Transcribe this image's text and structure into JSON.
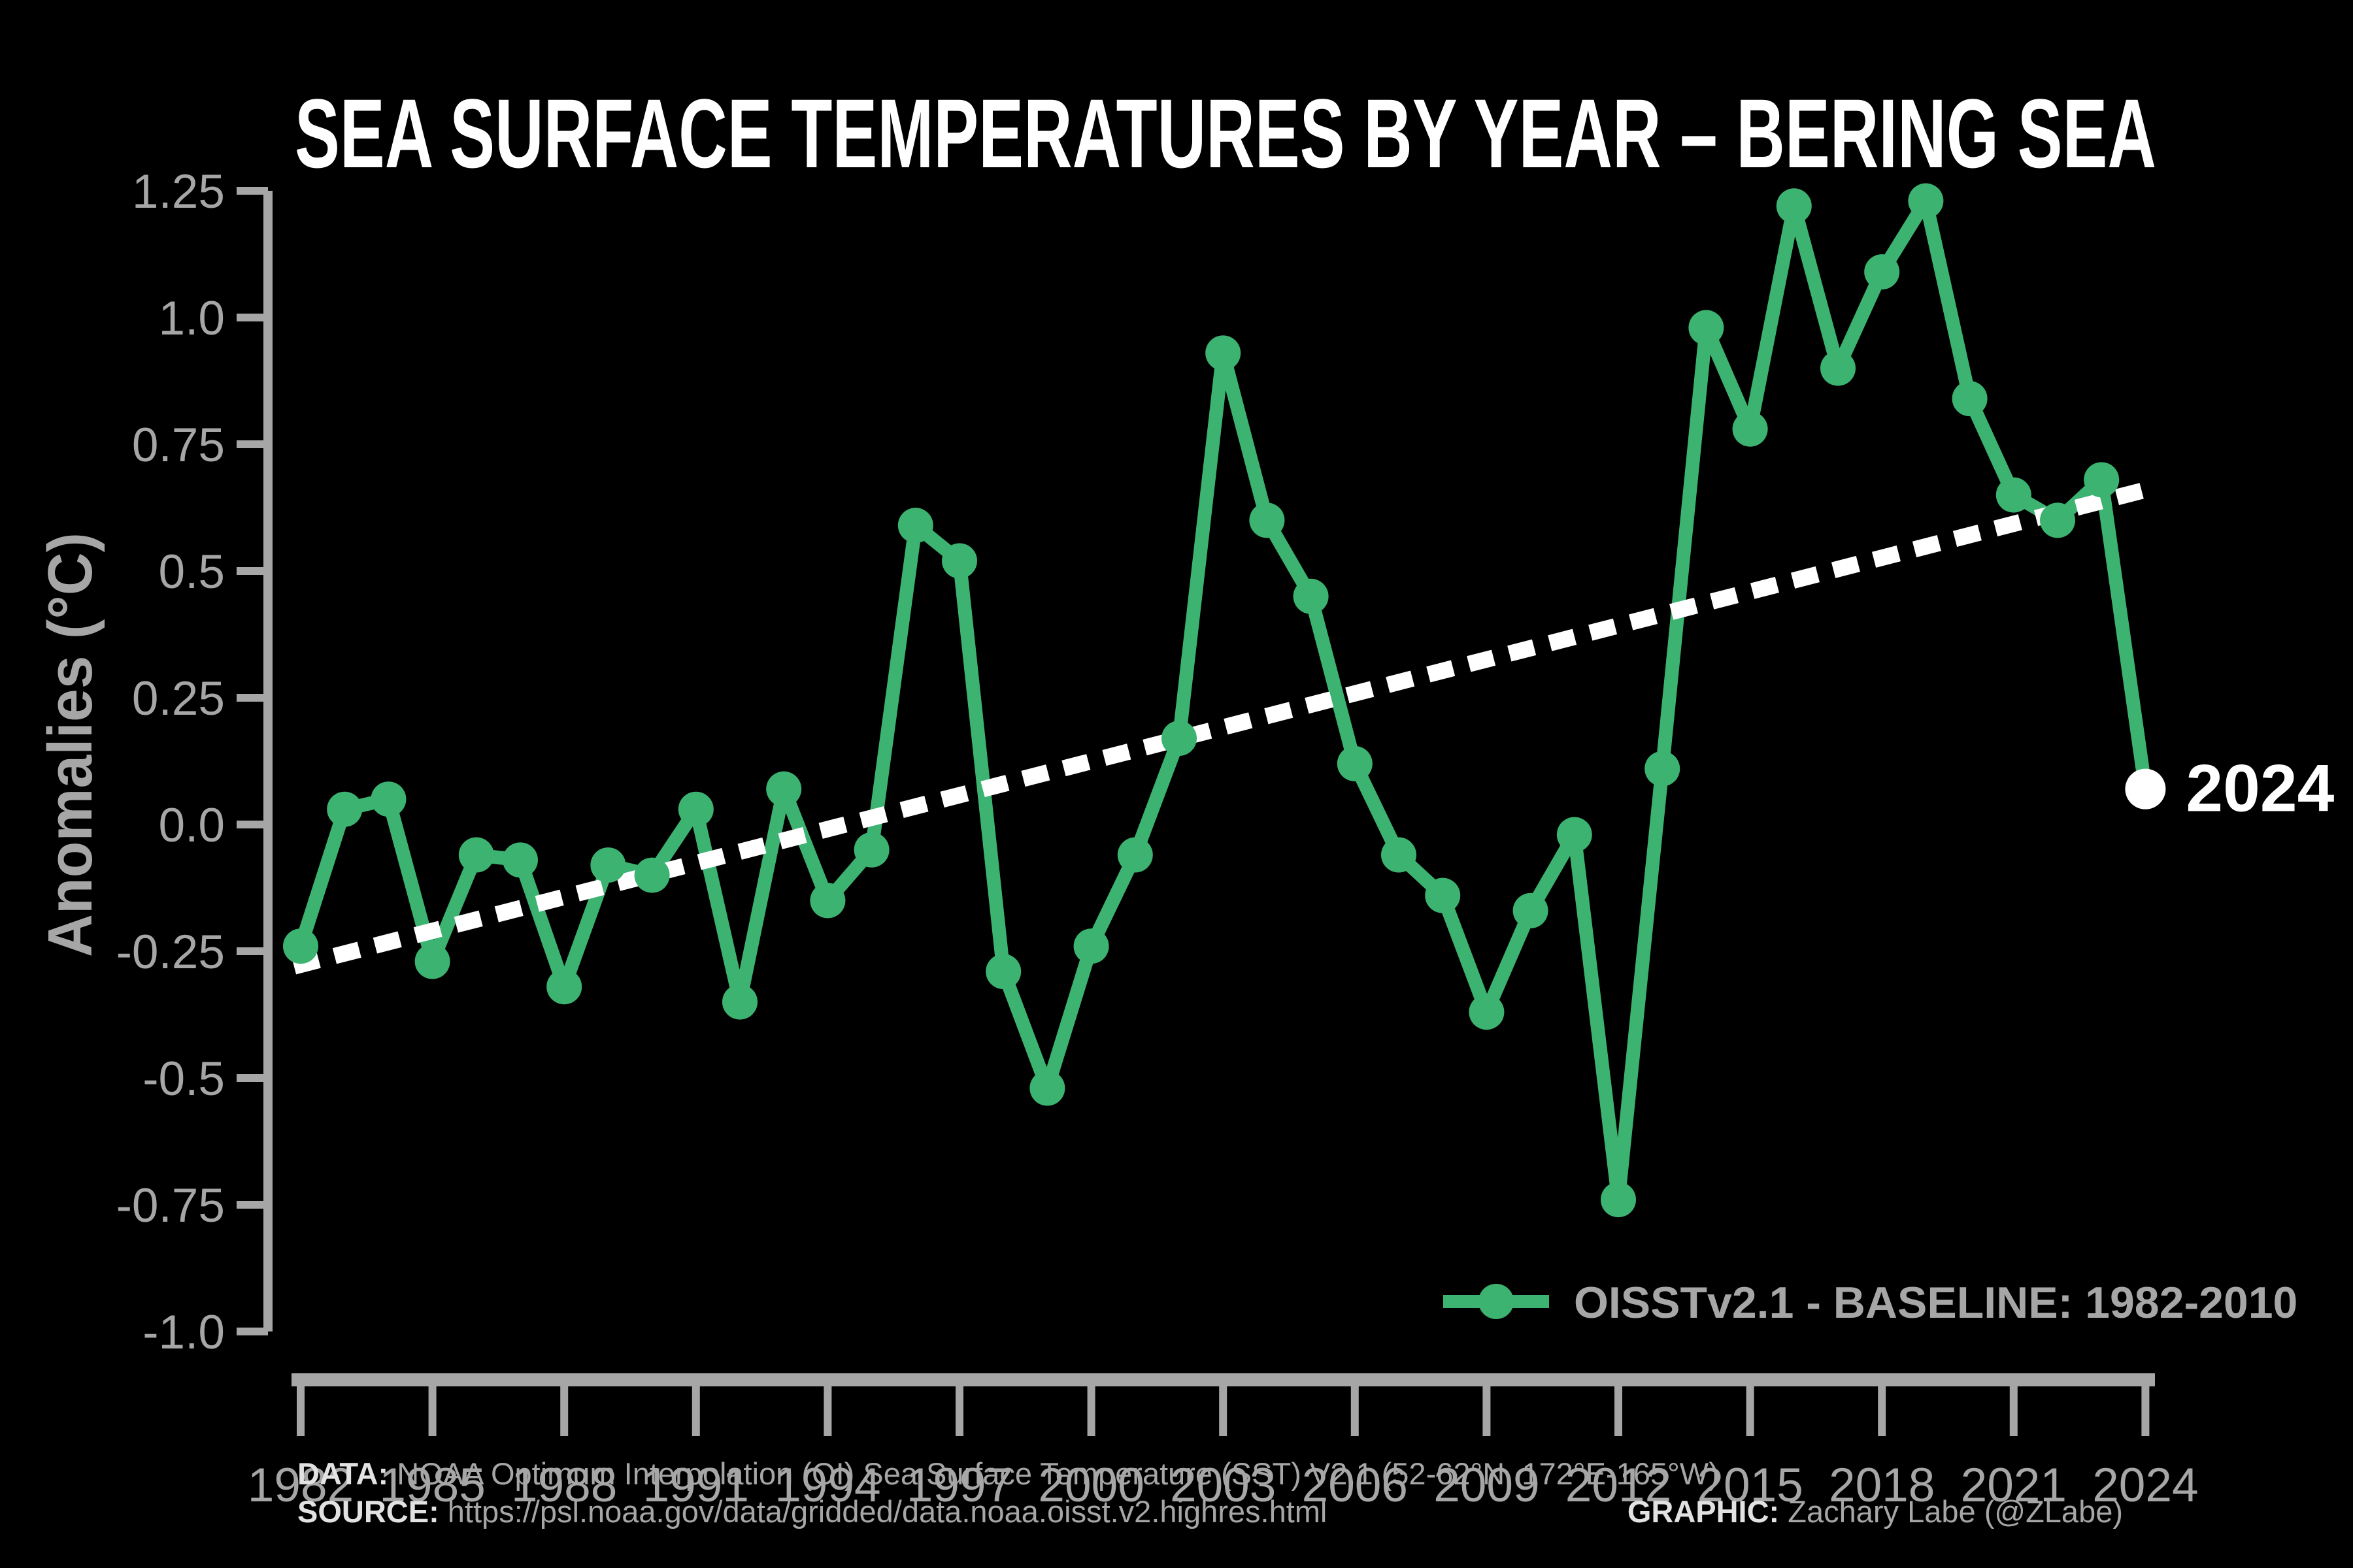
{
  "title": "SEA SURFACE TEMPERATURES BY YEAR – BERING SEA",
  "y_axis": {
    "label": "Anomalies (°C)",
    "ticks": [
      "1.25",
      "1.0",
      "0.75",
      "0.5",
      "0.25",
      "0.0",
      "-0.25",
      "-0.5",
      "-0.75",
      "-1.0"
    ],
    "tick_values": [
      1.25,
      1.0,
      0.75,
      0.5,
      0.25,
      0.0,
      -0.25,
      -0.5,
      -0.75,
      -1.0
    ]
  },
  "x_axis": {
    "ticks": [
      "1982",
      "1985",
      "1988",
      "1991",
      "1994",
      "1997",
      "2000",
      "2003",
      "2006",
      "2009",
      "2012",
      "2015",
      "2018",
      "2021",
      "2024"
    ],
    "tick_values": [
      1982,
      1985,
      1988,
      1991,
      1994,
      1997,
      2000,
      2003,
      2006,
      2009,
      2012,
      2015,
      2018,
      2021,
      2024
    ]
  },
  "legend": {
    "label": "OISSTv2.1 - BASELINE: 1982-2010"
  },
  "footer": {
    "data_label": "DATA:",
    "data_value": " NOAA Optimum Interpolation (OI) Sea Surface Temperature (SST) V2.1 (52-62°N, 172°E-165°W)",
    "source_label": "SOURCE:",
    "source_value": " https://psl.noaa.gov/data/gridded/data.noaa.oisst.v2.highres.html",
    "graphic_label": "GRAPHIC:",
    "graphic_value": " Zachary Labe (@ZLabe)"
  },
  "colors": {
    "background": "#000000",
    "line": "#3cb371",
    "axis": "#a6a6a6",
    "label_bright": "#e2e2e2",
    "white": "#ffffff"
  },
  "chart_data": {
    "type": "line",
    "title": "SEA SURFACE TEMPERATURES BY YEAR – BERING SEA",
    "xlabel": "",
    "ylabel": "Anomalies (°C)",
    "ylim": [
      -1.0,
      1.25
    ],
    "xlim": [
      1982,
      2024
    ],
    "grid": false,
    "legend_position": "lower right",
    "legend_label": "OISSTv2.1 - BASELINE: 1982-2010",
    "x": [
      1982,
      1983,
      1984,
      1985,
      1986,
      1987,
      1988,
      1989,
      1990,
      1991,
      1992,
      1993,
      1994,
      1995,
      1996,
      1997,
      1998,
      1999,
      2000,
      2001,
      2002,
      2003,
      2004,
      2005,
      2006,
      2007,
      2008,
      2009,
      2010,
      2011,
      2012,
      2013,
      2014,
      2015,
      2016,
      2017,
      2018,
      2019,
      2020,
      2021,
      2022,
      2023,
      2024
    ],
    "values": [
      -0.24,
      0.03,
      0.05,
      -0.27,
      -0.06,
      -0.07,
      -0.32,
      -0.08,
      -0.1,
      0.03,
      -0.35,
      0.07,
      -0.15,
      -0.05,
      0.59,
      0.52,
      -0.29,
      -0.52,
      -0.24,
      -0.06,
      0.17,
      0.93,
      0.6,
      0.45,
      0.12,
      -0.06,
      -0.14,
      -0.37,
      -0.17,
      -0.02,
      -0.74,
      0.11,
      0.98,
      0.78,
      1.22,
      0.9,
      1.09,
      1.23,
      0.84,
      0.65,
      0.6,
      0.68,
      0.07
    ],
    "series_name": "OISSTv2.1",
    "highlight_last": {
      "year": 2024,
      "value": 0.07,
      "label": "2024",
      "marker_color": "#ffffff"
    },
    "trendline": {
      "style": "dashed",
      "color": "#ffffff",
      "start": {
        "x": 1981.85,
        "y": -0.28
      },
      "end": {
        "x": 2024.0,
        "y": 0.66
      }
    }
  }
}
